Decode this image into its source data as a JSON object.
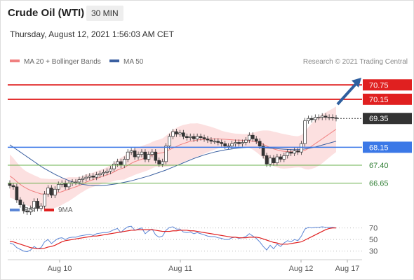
{
  "header": {
    "instrument": "Crude Oil (WTI)",
    "timeframe": "30 MIN",
    "datetime": "Thursday, August 12, 2021 1:56:03 AM CET"
  },
  "legend": {
    "ma20_label": "MA 20 + Bollinger Bands",
    "ma50_label": "MA 50",
    "attribution": "Research © 2021 Trading Central",
    "rsi_label": "RSI",
    "ma9_label": "9MA"
  },
  "colors": {
    "ma20": "#f08080",
    "ma50": "#3a5fa0",
    "resistance": "#e02020",
    "support_blue": "#3b78e7",
    "support_green": "#6ab04c",
    "pivot": "#333333",
    "arrow": "#2f5f9f",
    "rsi": "#5b86d6",
    "rsi_ma9": "#e02020"
  },
  "chart_data": [
    {
      "type": "candlestick",
      "x_ticks": [
        "Aug 10",
        "Aug 11",
        "Aug 12",
        "Aug 17"
      ],
      "y_range": [
        66.0,
        71.4
      ],
      "levels": [
        {
          "value": 70.75,
          "label": "70.75",
          "style": "resistance"
        },
        {
          "value": 70.15,
          "label": "70.15",
          "style": "resistance"
        },
        {
          "value": 69.35,
          "label": "69.35",
          "style": "pivot"
        },
        {
          "value": 68.15,
          "label": "68.15",
          "style": "support_blue"
        },
        {
          "value": 67.4,
          "label": "67.40",
          "style": "support_green"
        },
        {
          "value": 66.65,
          "label": "66.65",
          "style": "support_green"
        }
      ],
      "closes": [
        66.55,
        66.5,
        65.95,
        65.75,
        65.5,
        65.45,
        65.6,
        65.9,
        65.6,
        65.7,
        66.2,
        66.45,
        66.15,
        66.4,
        66.6,
        66.65,
        66.5,
        66.65,
        66.7,
        66.7,
        66.8,
        66.85,
        66.9,
        66.95,
        66.9,
        67.0,
        67.05,
        67.1,
        67.15,
        67.25,
        67.45,
        67.55,
        67.4,
        67.65,
        67.95,
        68.0,
        67.75,
        67.85,
        67.95,
        67.65,
        67.85,
        67.95,
        67.6,
        67.45,
        67.55,
        68.2,
        68.6,
        68.8,
        68.7,
        68.75,
        68.6,
        68.55,
        68.6,
        68.5,
        68.6,
        68.55,
        68.5,
        68.45,
        68.4,
        68.4,
        68.35,
        68.3,
        68.2,
        68.2,
        68.3,
        68.35,
        68.3,
        68.35,
        68.45,
        68.65,
        68.5,
        68.4,
        68.2,
        67.8,
        67.45,
        67.7,
        67.5,
        67.75,
        67.65,
        67.8,
        67.95,
        67.9,
        68.0,
        67.95,
        68.3,
        69.25,
        69.35,
        69.3,
        69.4,
        69.4,
        69.45,
        69.4,
        69.4,
        69.38,
        69.35
      ],
      "ma20": [
        66.95,
        66.85,
        66.72,
        66.6,
        66.5,
        66.42,
        66.35,
        66.3,
        66.25,
        66.2,
        66.2,
        66.2,
        66.2,
        66.22,
        66.25,
        66.3,
        66.35,
        66.4,
        66.45,
        66.5,
        66.55,
        66.62,
        66.7,
        66.75,
        66.8,
        66.85,
        66.9,
        66.95,
        67.0,
        67.05,
        67.12,
        67.2,
        67.25,
        67.3,
        67.4,
        67.48,
        67.55,
        67.6,
        67.65,
        67.7,
        67.75,
        67.82,
        67.88,
        67.9,
        67.92,
        67.98,
        68.05,
        68.12,
        68.18,
        68.25,
        68.3,
        68.35,
        68.4,
        68.42,
        68.45,
        68.47,
        68.48,
        68.49,
        68.5,
        68.5,
        68.5,
        68.49,
        68.48,
        68.47,
        68.46,
        68.45,
        68.45,
        68.44,
        68.43,
        68.42,
        68.4,
        68.37,
        68.33,
        68.27,
        68.2,
        68.14,
        68.08,
        68.04,
        68.0,
        67.98,
        67.97,
        67.96,
        67.96,
        67.96,
        67.98,
        68.02,
        68.1,
        68.2,
        68.3,
        68.4,
        68.5,
        68.6,
        68.7,
        68.8,
        68.9
      ],
      "bb_width": [
        0.9,
        0.85,
        0.8,
        0.75,
        0.72,
        0.7,
        0.7,
        0.68,
        0.67,
        0.65,
        0.64,
        0.63,
        0.62,
        0.6,
        0.58,
        0.55,
        0.52,
        0.5,
        0.45,
        0.4,
        0.35,
        0.33,
        0.32,
        0.3,
        0.3,
        0.3,
        0.3,
        0.3,
        0.32,
        0.35,
        0.38,
        0.42,
        0.46,
        0.5,
        0.52,
        0.55,
        0.55,
        0.55,
        0.55,
        0.55,
        0.55,
        0.55,
        0.55,
        0.57,
        0.6,
        0.65,
        0.7,
        0.75,
        0.78,
        0.78,
        0.78,
        0.76,
        0.74,
        0.72,
        0.7,
        0.65,
        0.6,
        0.55,
        0.5,
        0.45,
        0.4,
        0.35,
        0.32,
        0.3,
        0.28,
        0.27,
        0.26,
        0.26,
        0.27,
        0.3,
        0.35,
        0.42,
        0.5,
        0.58,
        0.65,
        0.7,
        0.72,
        0.73,
        0.73,
        0.72,
        0.7,
        0.68,
        0.66,
        0.65,
        0.68,
        0.78,
        0.88,
        0.95,
        1.0,
        1.02,
        1.02,
        1.0,
        0.98,
        0.96,
        0.95
      ],
      "ma50": [
        68.25,
        68.15,
        68.05,
        67.95,
        67.85,
        67.75,
        67.65,
        67.55,
        67.45,
        67.35,
        67.26,
        67.18,
        67.1,
        67.02,
        66.95,
        66.88,
        66.82,
        66.76,
        66.71,
        66.67,
        66.63,
        66.6,
        66.58,
        66.56,
        66.55,
        66.55,
        66.55,
        66.56,
        66.57,
        66.59,
        66.61,
        66.63,
        66.66,
        66.69,
        66.72,
        66.75,
        66.79,
        66.83,
        66.87,
        66.91,
        66.95,
        67.0,
        67.05,
        67.1,
        67.15,
        67.2,
        67.26,
        67.32,
        67.38,
        67.44,
        67.5,
        67.56,
        67.62,
        67.68,
        67.73,
        67.78,
        67.83,
        67.87,
        67.91,
        67.95,
        67.98,
        68.01,
        68.04,
        68.06,
        68.08,
        68.1,
        68.12,
        68.13,
        68.14,
        68.15,
        68.15,
        68.15,
        68.14,
        68.13,
        68.12,
        68.11,
        68.1,
        68.09,
        68.08,
        68.07,
        68.06,
        68.05,
        68.05,
        68.05,
        68.06,
        68.08,
        68.1,
        68.13,
        68.16,
        68.2,
        68.24,
        68.28,
        68.32,
        68.36,
        68.4
      ]
    },
    {
      "type": "line",
      "title": "RSI",
      "y_range": [
        20,
        78
      ],
      "y_ticks": [
        70,
        50,
        30
      ],
      "series": [
        {
          "name": "RSI",
          "values": [
            44,
            42,
            36,
            33,
            30,
            29,
            32,
            38,
            34,
            36,
            46,
            50,
            43,
            48,
            52,
            53,
            50,
            53,
            54,
            54,
            56,
            57,
            58,
            59,
            57,
            60,
            61,
            62,
            62,
            64,
            67,
            69,
            62,
            68,
            72,
            73,
            66,
            68,
            70,
            60,
            65,
            68,
            58,
            54,
            56,
            66,
            71,
            72,
            68,
            68,
            63,
            62,
            63,
            60,
            62,
            60,
            58,
            56,
            55,
            55,
            53,
            52,
            50,
            50,
            53,
            54,
            52,
            53,
            55,
            60,
            56,
            52,
            46,
            38,
            32,
            40,
            34,
            42,
            38,
            44,
            48,
            46,
            50,
            48,
            56,
            68,
            71,
            70,
            71,
            71,
            72,
            71,
            71,
            71,
            70
          ]
        },
        {
          "name": "9MA",
          "values": [
            47,
            46,
            44,
            42,
            40,
            38,
            36,
            35,
            34,
            34,
            35,
            37,
            38,
            40,
            43,
            46,
            48,
            49,
            50,
            51,
            52,
            53,
            54,
            55,
            56,
            56,
            57,
            58,
            59,
            60,
            61,
            62,
            63,
            64,
            65,
            66,
            66,
            67,
            67,
            67,
            67,
            67,
            66,
            65,
            64,
            64,
            64,
            65,
            65,
            66,
            66,
            66,
            65,
            65,
            64,
            63,
            62,
            61,
            60,
            59,
            58,
            57,
            56,
            55,
            54,
            54,
            53,
            53,
            53,
            54,
            54,
            54,
            53,
            51,
            49,
            47,
            45,
            44,
            42,
            42,
            42,
            43,
            44,
            45,
            46,
            49,
            52,
            55,
            58,
            61,
            64,
            67,
            69,
            70,
            70
          ]
        }
      ]
    }
  ]
}
